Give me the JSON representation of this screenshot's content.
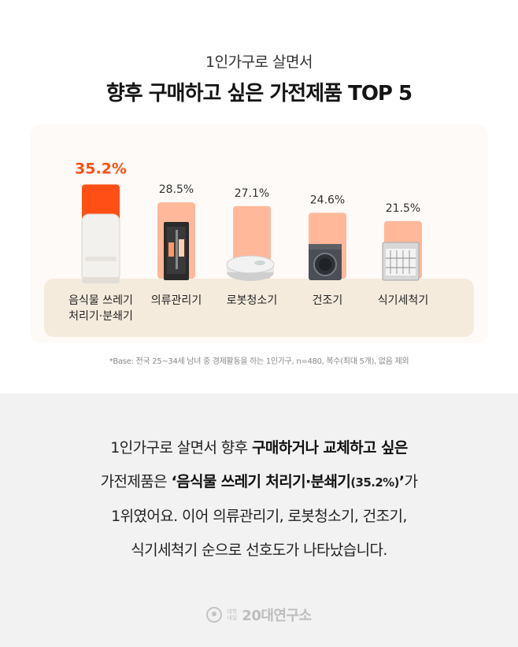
{
  "header": {
    "subtitle": "1인가구로 살면서",
    "title": "향후 구매하고 싶은 가전제품 TOP 5"
  },
  "chart_data": {
    "type": "bar",
    "categories": [
      [
        "음식물 쓰레기",
        "처리기·분쇄기"
      ],
      [
        "의류관리기"
      ],
      [
        "로봇청소기"
      ],
      [
        "건조기"
      ],
      [
        "식기세척기"
      ]
    ],
    "values": [
      35.2,
      28.5,
      27.1,
      24.6,
      21.5
    ],
    "value_labels": [
      "35.2%",
      "28.5%",
      "27.1%",
      "24.6%",
      "21.5%"
    ],
    "ylim": [
      0,
      40
    ],
    "grid": false,
    "colors": {
      "top": "#ff4f14",
      "others": "#ffb89a"
    }
  },
  "note": "*Base: 전국 25~34세 남녀 중 경제활동을 하는 1인가구, n=480, 복수(최대 5개), 없음 제외",
  "summary": {
    "l1a": "1인가구로 살면서 향후 ",
    "l1b": "구매하거나 교체하고 싶은",
    "l2a": "가전제품은 ",
    "l2b": "‘음식물 쓰레기 처리기·분쇄기",
    "l2c": "(35.2%)",
    "l2d": "’",
    "l2e": "가",
    "l3": "1위였어요. 이어 의류관리기, 로봇청소기, 건조기,",
    "l4": "식기세척기 순으로 선호도가 나타났습니다."
  },
  "footer": {
    "logo_small_1": "대학",
    "logo_small_2": "내일",
    "logo_text": "20대연구소"
  }
}
